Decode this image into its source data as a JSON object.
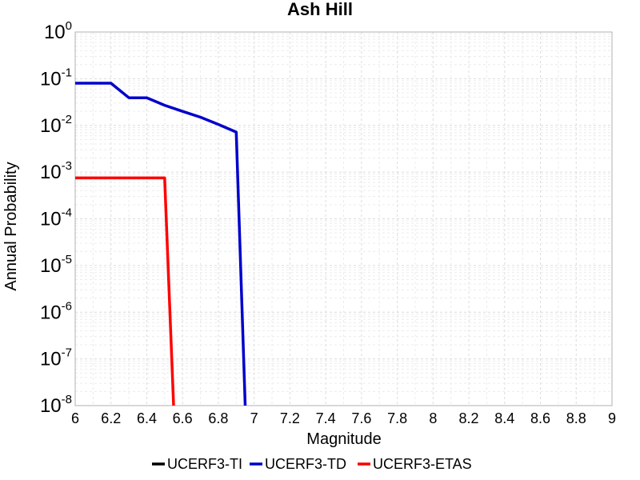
{
  "chart_data": {
    "type": "line",
    "title": "Ash Hill",
    "xlabel": "Magnitude",
    "ylabel": "Annual Probability",
    "xlim": [
      6,
      9
    ],
    "ylim": [
      1e-08,
      1
    ],
    "yscale": "log",
    "grid": true,
    "legend_position": "bottom",
    "x_ticks": [
      "6",
      "6.2",
      "6.4",
      "6.6",
      "6.8",
      "7",
      "7.2",
      "7.4",
      "7.6",
      "7.8",
      "8",
      "8.2",
      "8.4",
      "8.6",
      "8.8",
      "9"
    ],
    "y_ticks": [
      {
        "base": "10",
        "exp": "0"
      },
      {
        "base": "10",
        "exp": "-1"
      },
      {
        "base": "10",
        "exp": "-2"
      },
      {
        "base": "10",
        "exp": "-3"
      },
      {
        "base": "10",
        "exp": "-4"
      },
      {
        "base": "10",
        "exp": "-5"
      },
      {
        "base": "10",
        "exp": "-6"
      },
      {
        "base": "10",
        "exp": "-7"
      },
      {
        "base": "10",
        "exp": "-8"
      }
    ],
    "series": [
      {
        "name": "UCERF3-TI",
        "color": "#000000",
        "x": [],
        "y": []
      },
      {
        "name": "UCERF3-TD",
        "color": "#0000cc",
        "x": [
          6.0,
          6.2,
          6.3,
          6.4,
          6.5,
          6.6,
          6.7,
          6.8,
          6.9,
          6.95
        ],
        "y": [
          0.08,
          0.08,
          0.039,
          0.039,
          0.027,
          0.02,
          0.015,
          0.0105,
          0.0072,
          1e-08
        ]
      },
      {
        "name": "UCERF3-ETAS",
        "color": "#ff0000",
        "x": [
          6.0,
          6.5,
          6.55
        ],
        "y": [
          0.00075,
          0.00075,
          1e-08
        ]
      }
    ]
  }
}
